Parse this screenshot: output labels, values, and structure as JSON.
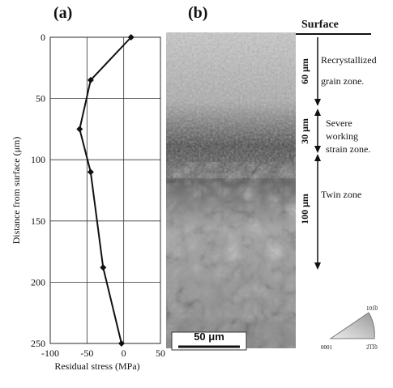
{
  "chart_data": {
    "type": "line",
    "title": "(a)",
    "x_label": "Residual stress  (MPa)",
    "y_label": "Distance from surface  (μm)",
    "x": [
      10,
      -45,
      -60,
      -45,
      -28,
      -3
    ],
    "y": [
      0,
      35,
      75,
      110,
      188,
      250
    ],
    "color": "#111111",
    "xlim": [
      -100,
      50
    ],
    "ylim": [
      0,
      250
    ],
    "y_inverted": true,
    "xticks": [
      -100,
      -50,
      0,
      50
    ],
    "yticks": [
      0,
      50,
      100,
      150,
      200,
      250
    ],
    "grid": true
  },
  "figure_b": {
    "title": "(b)",
    "surface": "Surface",
    "scale_bar": "50 μm",
    "zones": [
      {
        "depth": "60 μm",
        "label_lines": [
          "Recrystallized",
          "grain zone."
        ]
      },
      {
        "depth": "30 μm",
        "label_lines": [
          "Severe",
          "working",
          "strain zone."
        ]
      },
      {
        "depth": "100 μm",
        "label_lines": [
          "Twin zone"
        ]
      }
    ],
    "ipf_labels": [
      "0001",
      "2̅1̅1̅0",
      "101̅0"
    ]
  }
}
